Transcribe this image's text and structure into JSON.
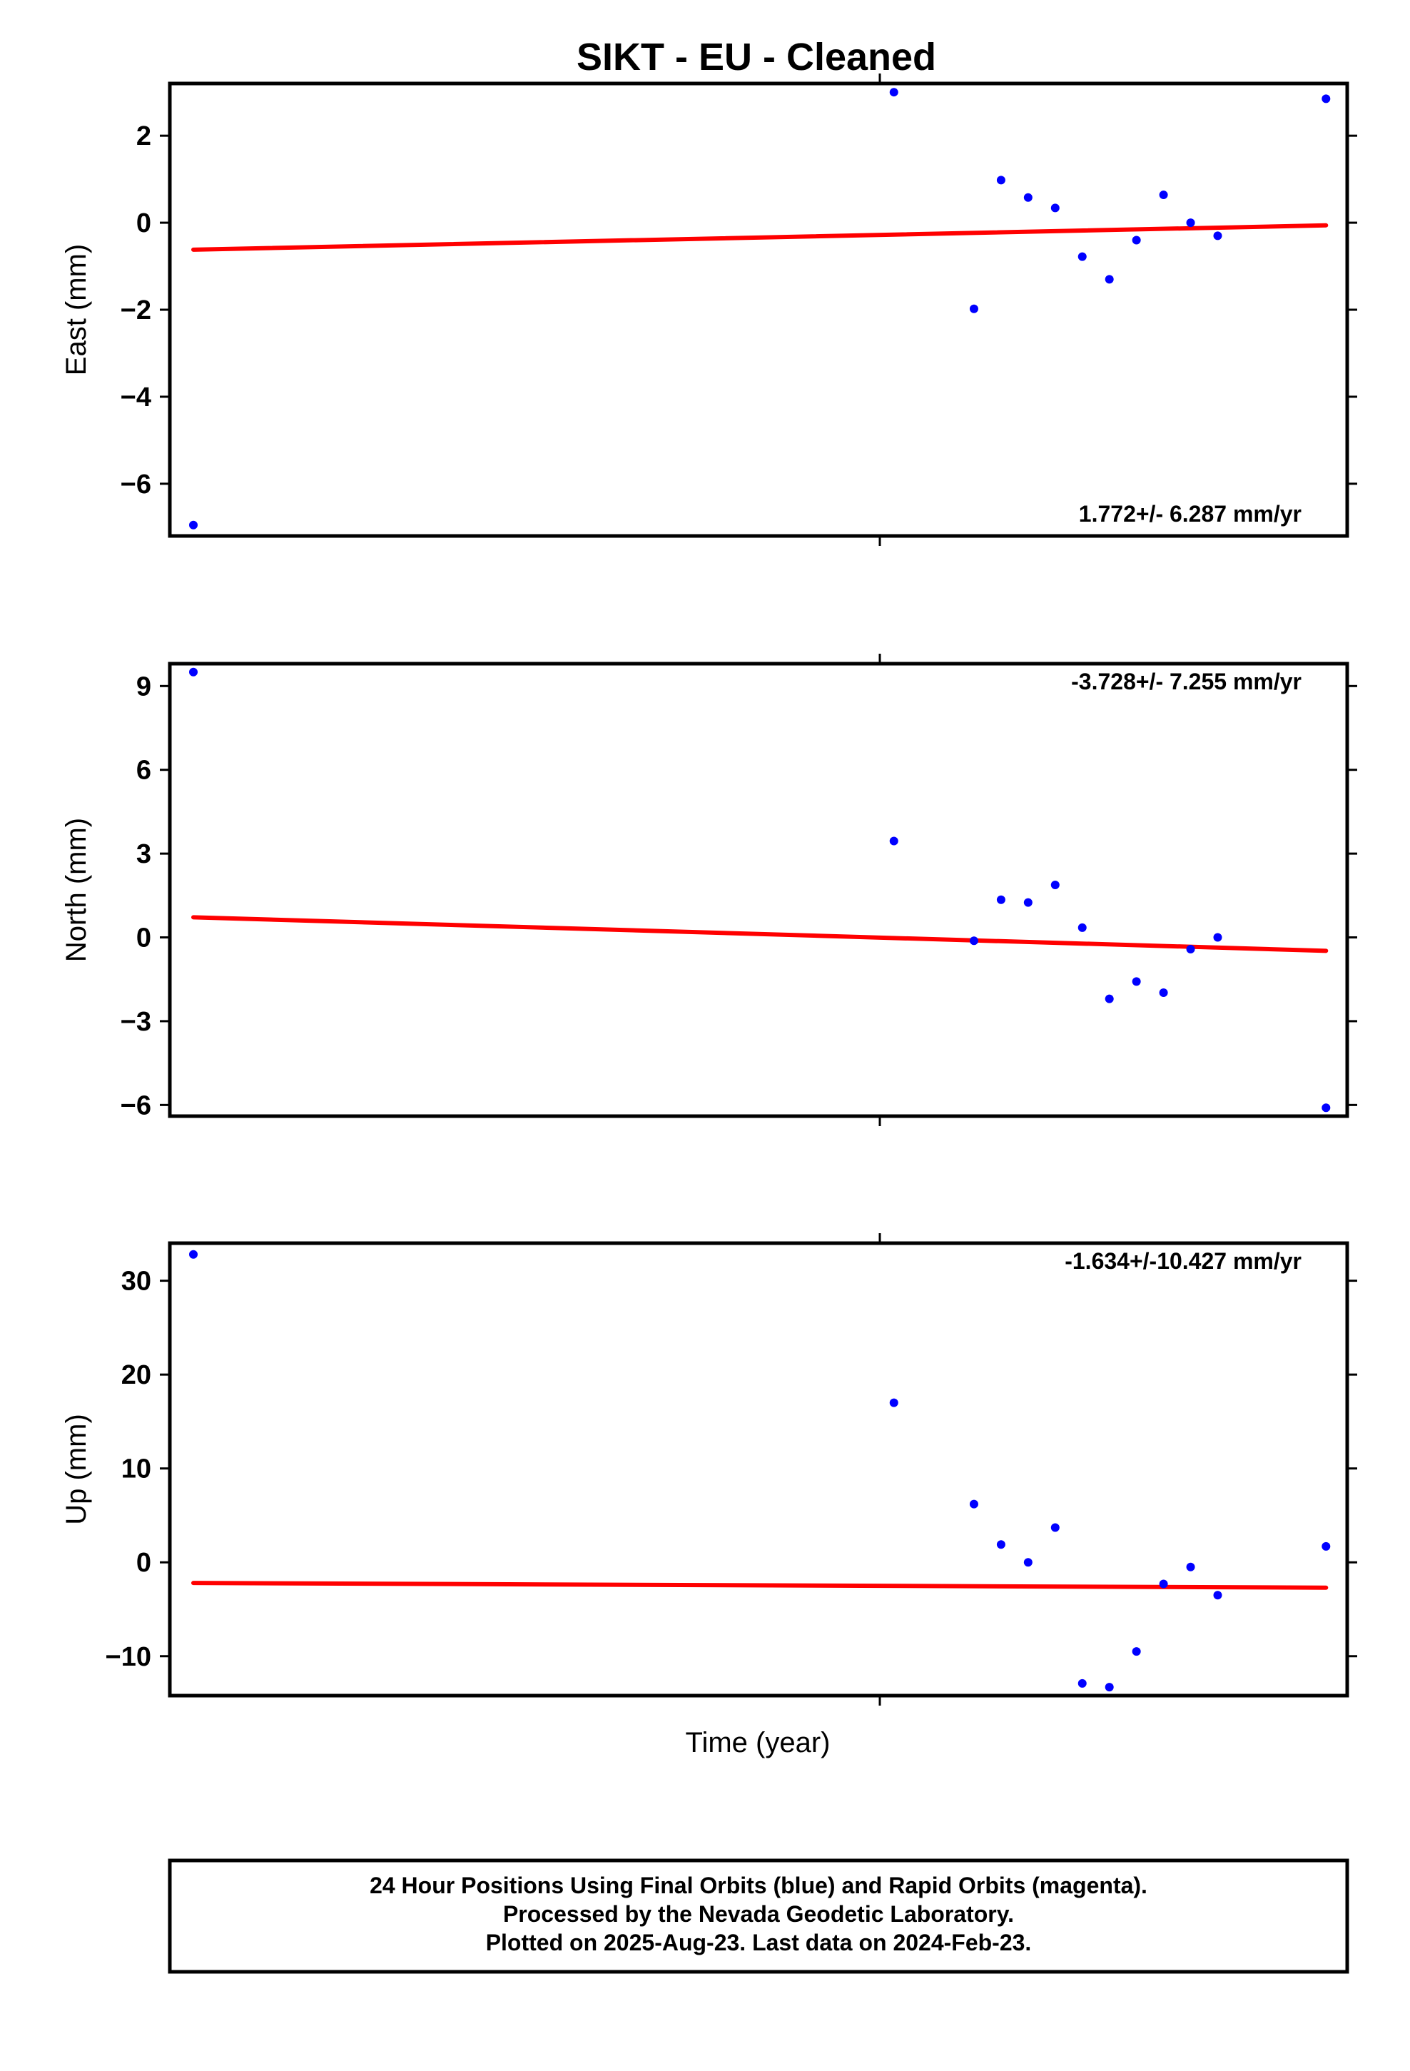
{
  "title": "SIKT  - EU - Cleaned",
  "xlabel": "Time (year)",
  "footer": {
    "line1": "24 Hour Positions Using Final Orbits (blue) and Rapid Orbits (magenta).",
    "line2": "Processed by the Nevada Geodetic Laboratory.",
    "line3": "Plotted on 2025-Aug-23. Last data on 2024-Feb-23."
  },
  "colors": {
    "points": "#0000ff",
    "fit": "#ff0000",
    "frame": "#000000"
  },
  "chart_data": [
    {
      "type": "scatter",
      "title": "SIKT  - EU - Cleaned",
      "ylabel": "East (mm)",
      "ylim": [
        -7.2,
        3.2
      ],
      "yticks": [
        2,
        0,
        -2,
        -4,
        -6
      ],
      "ytick_labels": [
        "2",
        "0",
        "−2",
        "−4",
        "−6"
      ],
      "rate_label": "1.772+/- 6.287 mm/yr",
      "rate_position": "bottom-right",
      "grid": false,
      "points": {
        "x": [
          0.02,
          0.615,
          0.683,
          0.706,
          0.729,
          0.752,
          0.775,
          0.798,
          0.821,
          0.844,
          0.867,
          0.89,
          0.982
        ],
        "y": [
          -6.95,
          3.0,
          -1.98,
          0.98,
          0.58,
          0.34,
          -0.78,
          -1.3,
          -0.4,
          0.64,
          0.0,
          -0.3,
          2.85
        ]
      },
      "fit": {
        "x": [
          0.02,
          0.982
        ],
        "y": [
          -0.62,
          -0.06
        ]
      }
    },
    {
      "type": "scatter",
      "ylabel": "North (mm)",
      "ylim": [
        -6.4,
        9.8
      ],
      "yticks": [
        9,
        6,
        3,
        0,
        -3,
        -6
      ],
      "ytick_labels": [
        "9",
        "6",
        "3",
        "0",
        "−3",
        "−6"
      ],
      "rate_label": "-3.728+/- 7.255 mm/yr",
      "rate_position": "top-right",
      "grid": false,
      "points": {
        "x": [
          0.02,
          0.615,
          0.683,
          0.706,
          0.729,
          0.752,
          0.775,
          0.798,
          0.821,
          0.844,
          0.867,
          0.89,
          0.982
        ],
        "y": [
          9.5,
          3.45,
          -0.12,
          1.35,
          1.25,
          1.88,
          0.35,
          -2.2,
          -1.58,
          -1.98,
          -0.42,
          0.0,
          -6.1
        ]
      },
      "fit": {
        "x": [
          0.02,
          0.982
        ],
        "y": [
          0.72,
          -0.48
        ]
      }
    },
    {
      "type": "scatter",
      "ylabel": "Up (mm)",
      "ylim": [
        -14.2,
        34.0
      ],
      "yticks": [
        30,
        20,
        10,
        0,
        -10
      ],
      "ytick_labels": [
        "30",
        "20",
        "10",
        "0",
        "−10"
      ],
      "rate_label": "-1.634+/-10.427 mm/yr",
      "rate_position": "top-right",
      "grid": false,
      "points": {
        "x": [
          0.02,
          0.615,
          0.683,
          0.706,
          0.729,
          0.752,
          0.775,
          0.798,
          0.821,
          0.844,
          0.867,
          0.89,
          0.982
        ],
        "y": [
          32.8,
          17.0,
          6.2,
          1.9,
          0.0,
          3.7,
          -12.9,
          -13.3,
          -9.5,
          -2.3,
          -0.5,
          -3.5,
          1.7
        ]
      },
      "fit": {
        "x": [
          0.02,
          0.982
        ],
        "y": [
          -2.2,
          -2.7
        ]
      }
    }
  ]
}
